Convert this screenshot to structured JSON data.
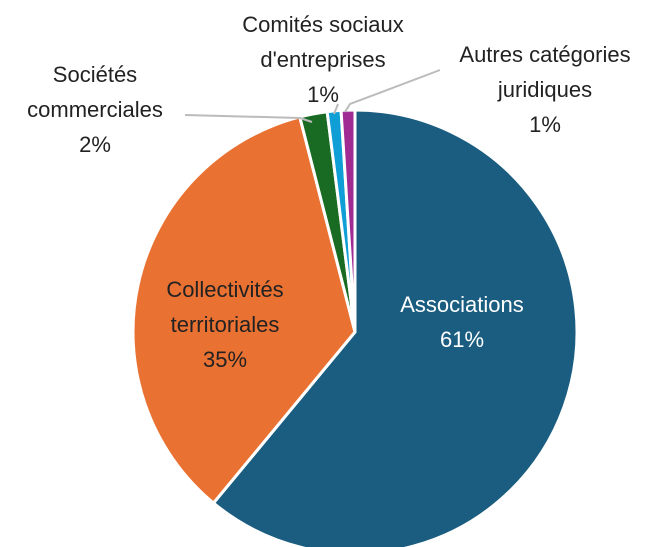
{
  "chart_data": {
    "type": "pie",
    "categories": [
      "Associations",
      "Collectivités territoriales",
      "Sociétés commerciales",
      "Comités sociaux d'entreprises",
      "Autres catégories juridiques"
    ],
    "values": [
      61,
      35,
      2,
      1,
      1
    ],
    "value_labels": [
      "61%",
      "35%",
      "2%",
      "1%",
      "1%"
    ],
    "colors": [
      "#1a5d80",
      "#e97132",
      "#196b24",
      "#0f9ed5",
      "#a02b93"
    ]
  }
}
